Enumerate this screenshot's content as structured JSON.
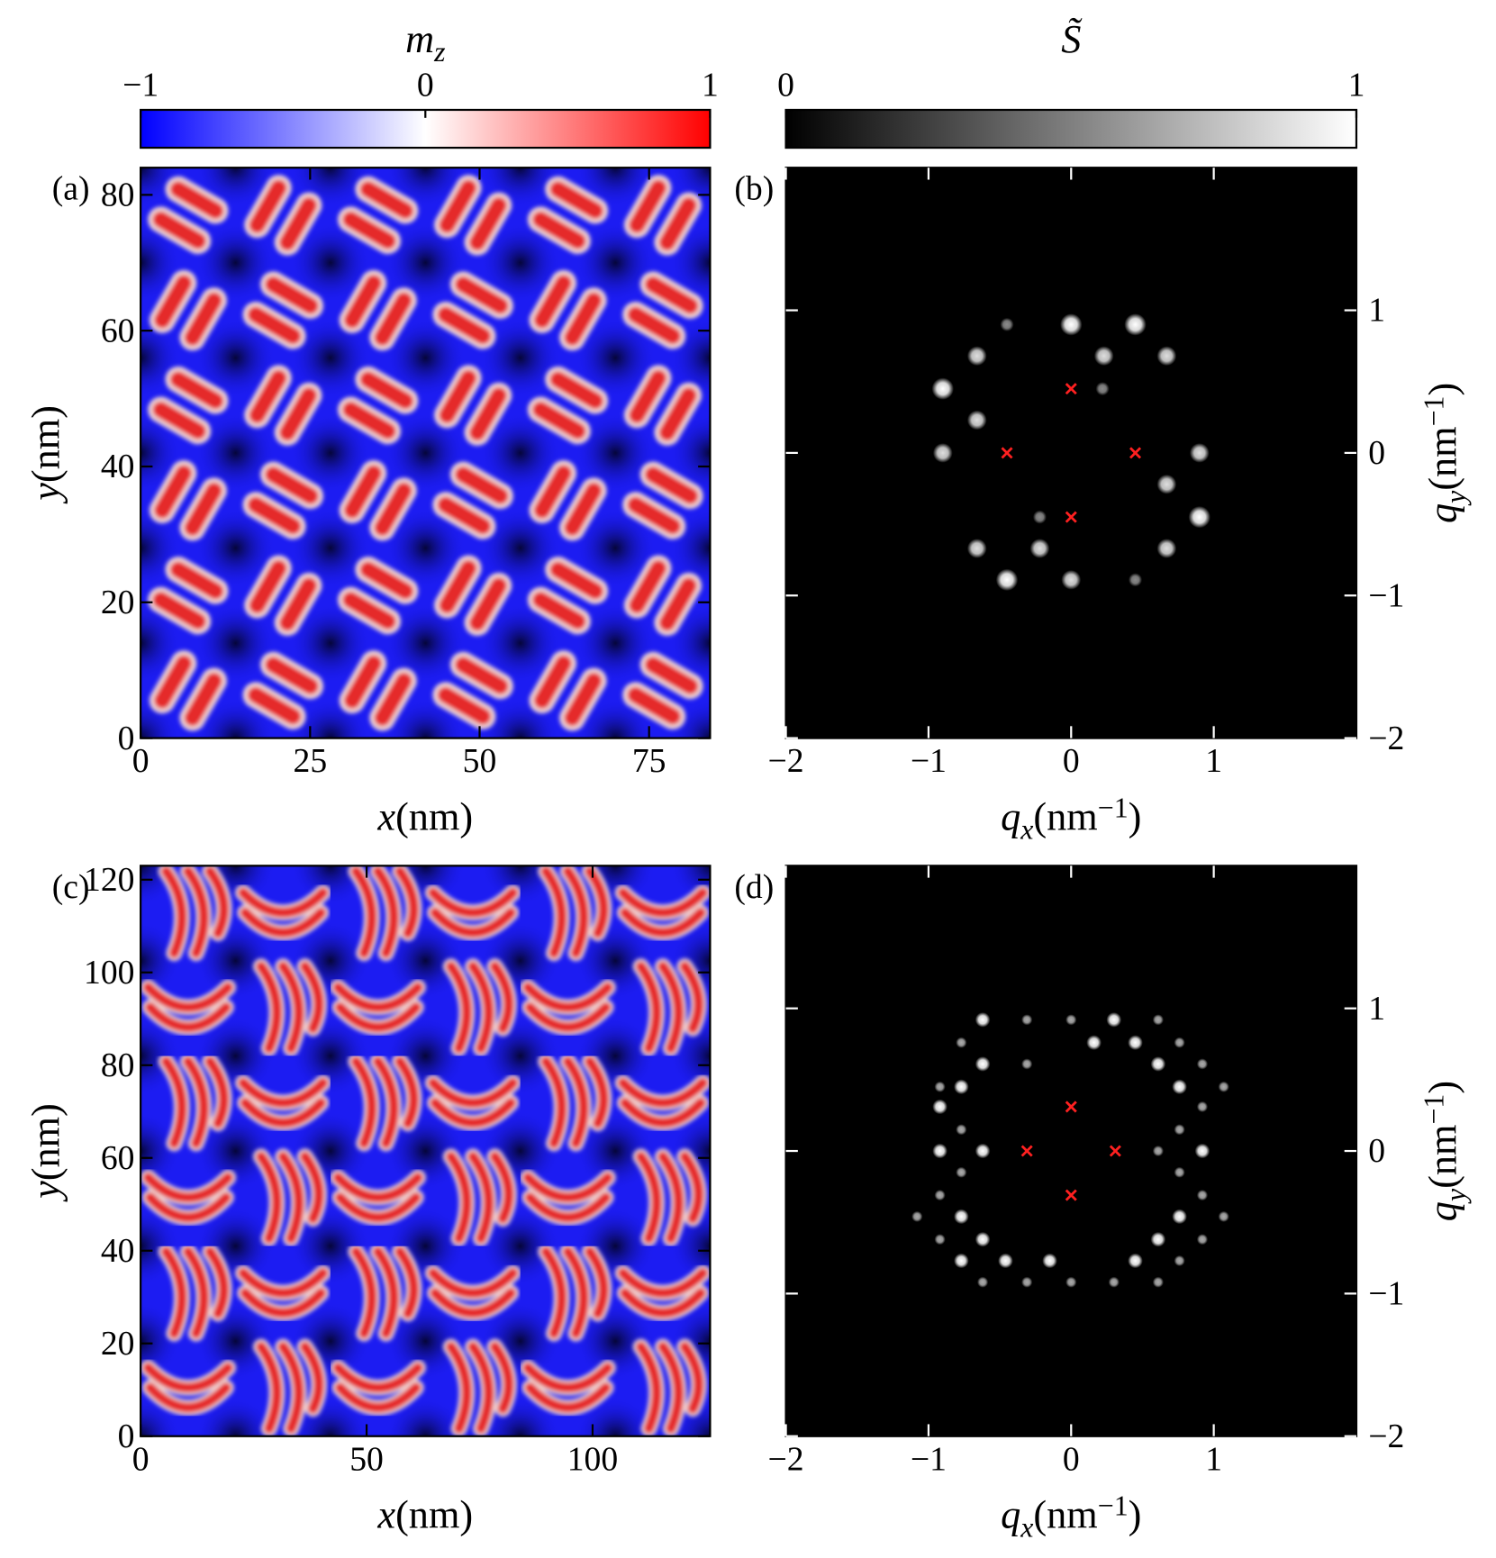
{
  "chart_data": [
    {
      "type": "heatmap",
      "panel_label": "(a)",
      "colorbar": {
        "label": {
          "var": "m",
          "sub": "z"
        },
        "lim": [
          -1,
          1
        ],
        "ticks": [
          {
            "value": -1,
            "label": "−1"
          },
          0,
          1
        ],
        "colors": [
          "#0000ff",
          "#ffffff",
          "#ff0000"
        ]
      },
      "xlabel": {
        "var": "x",
        "unit": "(nm)"
      },
      "ylabel": {
        "var": "y",
        "unit": "(nm)"
      },
      "xlim": [
        0,
        84
      ],
      "ylim": [
        0,
        84
      ],
      "xticks": [
        0,
        25,
        50,
        75
      ],
      "yticks": [
        0,
        20,
        40,
        60,
        80
      ]
    },
    {
      "type": "spots",
      "panel_label": "(b)",
      "colorbar": {
        "label": {
          "var": "S̃"
        },
        "lim": [
          0,
          1
        ],
        "ticks": [
          0,
          1
        ],
        "colors": [
          "#000000",
          "#ffffff"
        ]
      },
      "xlabel": {
        "var": "q",
        "sub": "x",
        "unit": "(nm",
        "sup": "−1",
        "end": ")"
      },
      "ylabel": {
        "var": "q",
        "sub": "y",
        "unit": "(nm",
        "sup": "−1",
        "end": ")"
      },
      "xlim": [
        -2,
        2
      ],
      "ylim": [
        -2,
        2
      ],
      "xticks": [
        {
          "value": -2,
          "label": "−2"
        },
        {
          "value": -1,
          "label": "−1"
        },
        0,
        1
      ],
      "yticks": [
        {
          "value": -2,
          "label": "−2"
        },
        {
          "value": -1,
          "label": "−1"
        },
        0,
        1
      ],
      "spots": {
        "qx": [
          0,
          0.45,
          -0.66,
          0.23,
          0.67,
          -0.9,
          -0.66,
          -0.9,
          0.9,
          0.67,
          0.9,
          -0.66,
          -0.22,
          0.67,
          -0.45,
          0,
          -0.45,
          0.45,
          0.22,
          -0.22
        ],
        "qy": [
          0.9,
          0.9,
          0.68,
          0.68,
          0.68,
          0.45,
          0.23,
          0,
          0,
          -0.22,
          -0.45,
          -0.67,
          -0.67,
          -0.67,
          -0.89,
          -0.89,
          0.9,
          -0.89,
          0.45,
          -0.45
        ],
        "intensity": [
          1,
          1,
          0.8,
          0.8,
          0.8,
          1,
          0.8,
          0.8,
          0.8,
          0.8,
          1,
          0.8,
          0.8,
          0.8,
          1,
          0.8,
          0.3,
          0.3,
          0.3,
          0.3
        ]
      },
      "markers": {
        "qx": [
          0,
          -0.45,
          0.45,
          0
        ],
        "qy": [
          0.45,
          0,
          0,
          -0.45
        ]
      },
      "marker_color": "#ff2020"
    },
    {
      "type": "heatmap",
      "panel_label": "(c)",
      "xlabel": {
        "var": "x",
        "unit": "(nm)"
      },
      "ylabel": {
        "var": "y",
        "unit": "(nm)"
      },
      "xlim": [
        0,
        126
      ],
      "ylim": [
        0,
        123
      ],
      "xticks": [
        0,
        50,
        100
      ],
      "yticks": [
        0,
        20,
        40,
        60,
        80,
        100,
        120
      ]
    },
    {
      "type": "spots",
      "panel_label": "(d)",
      "xlabel": {
        "var": "q",
        "sub": "x",
        "unit": "(nm",
        "sup": "−1",
        "end": ")"
      },
      "ylabel": {
        "var": "q",
        "sub": "y",
        "unit": "(nm",
        "sup": "−1",
        "end": ")"
      },
      "xlim": [
        -2,
        2
      ],
      "ylim": [
        -2,
        2
      ],
      "xticks": [
        {
          "value": -2,
          "label": "−2"
        },
        {
          "value": -1,
          "label": "−1"
        },
        0,
        1
      ],
      "yticks": [
        {
          "value": -2,
          "label": "−2"
        },
        {
          "value": -1,
          "label": "−1"
        },
        0,
        1
      ],
      "spots": {
        "qx": [
          -0.62,
          -0.31,
          0,
          0.3,
          0.61,
          -0.77,
          0.16,
          0.45,
          0.76,
          -0.62,
          -0.31,
          0.61,
          0.92,
          -0.92,
          -0.77,
          0.76,
          1.07,
          -0.92,
          0.92,
          -0.77,
          0.76,
          -0.92,
          -0.62,
          0.61,
          0.92,
          -0.77,
          0.76,
          -0.92,
          0.92,
          -1.08,
          -0.77,
          0.76,
          1.07,
          -0.92,
          -0.62,
          0.61,
          0.92,
          -0.77,
          -0.46,
          -0.15,
          0.45,
          0.76,
          -0.62,
          -0.31,
          0,
          0.3,
          0.61
        ],
        "qy": [
          0.92,
          0.92,
          0.92,
          0.92,
          0.92,
          0.76,
          0.76,
          0.76,
          0.76,
          0.61,
          0.61,
          0.61,
          0.61,
          0.45,
          0.45,
          0.45,
          0.45,
          0.31,
          0.31,
          0.15,
          0.15,
          0,
          0,
          0,
          0,
          -0.15,
          -0.15,
          -0.31,
          -0.31,
          -0.46,
          -0.46,
          -0.46,
          -0.46,
          -0.62,
          -0.62,
          -0.62,
          -0.62,
          -0.77,
          -0.77,
          -0.77,
          -0.77,
          -0.77,
          -0.92,
          -0.92,
          -0.92,
          -0.92,
          -0.92
        ],
        "intensity": [
          1,
          0.5,
          0.5,
          1,
          0.5,
          0.5,
          1,
          1,
          0.5,
          1,
          0.5,
          1,
          0.5,
          0.5,
          1,
          1,
          0.5,
          1,
          0.5,
          0.5,
          0.5,
          1,
          1,
          0.5,
          1,
          0.5,
          0.5,
          0.5,
          0.5,
          0.5,
          1,
          1,
          0.5,
          0.5,
          1,
          1,
          0.5,
          1,
          1,
          1,
          1,
          0.5,
          0.5,
          0.5,
          0.5,
          0.5,
          0.5
        ]
      },
      "markers": {
        "qx": [
          0,
          -0.31,
          0.31,
          0
        ],
        "qy": [
          0.31,
          0,
          0,
          -0.31
        ]
      },
      "marker_color": "#ff2020"
    }
  ]
}
